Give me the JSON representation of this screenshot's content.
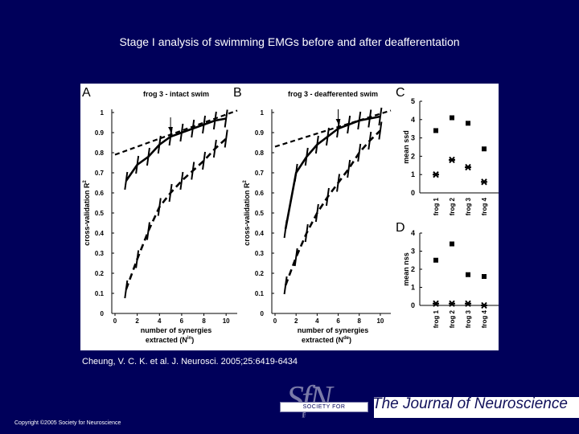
{
  "slide": {
    "title": "Stage I analysis of swimming EMGs before and after deafferentation",
    "citation": "Cheung, V. C. K. et al. J. Neurosci. 2005;25:6419-6434",
    "copyright": "Copyright ©2005 Society for Neuroscience",
    "journal_name": "The Journal of Neuroscience",
    "logo_letters": "SfN",
    "logo_text": "SOCIETY FOR NEUROSCIENCE"
  },
  "colors": {
    "background": "#00005a",
    "panel": "#ffffff",
    "ink": "#000000"
  },
  "chart_data": [
    {
      "panel": "A",
      "type": "line",
      "title": "frog 3 - intact swim",
      "xlabel": "number of synergies",
      "xlabel2": "extracted (N",
      "xlabel_sup": "in",
      "xlabel_end": ")",
      "ylabel": "cross-validation R",
      "ylabel_sup": "2",
      "xlim": [
        0,
        11
      ],
      "ylim": [
        0,
        1
      ],
      "xticks": [
        "0",
        "2",
        "4",
        "6",
        "8",
        "10"
      ],
      "yticks": [
        "0",
        "0.1",
        "0.2",
        "0.3",
        "0.4",
        "0.5",
        "0.6",
        "0.7",
        "0.8",
        "0.9",
        "1"
      ],
      "arrow_x": 5,
      "series": [
        {
          "name": "solid",
          "style": "solid",
          "x": [
            1,
            2,
            3,
            4,
            5,
            6,
            7,
            8,
            9,
            10
          ],
          "y": [
            0.66,
            0.74,
            0.78,
            0.84,
            0.88,
            0.9,
            0.92,
            0.94,
            0.96,
            0.97
          ]
        },
        {
          "name": "dashed",
          "style": "dashed",
          "x": [
            1,
            2,
            3,
            4,
            5,
            6,
            7,
            8,
            9,
            10
          ],
          "y": [
            0.12,
            0.27,
            0.41,
            0.53,
            0.6,
            0.66,
            0.71,
            0.76,
            0.82,
            0.87
          ]
        },
        {
          "name": "fit",
          "style": "fit",
          "x": [
            0,
            11
          ],
          "y": [
            0.79,
            1.01
          ]
        }
      ]
    },
    {
      "panel": "B",
      "type": "line",
      "title": "frog 3 - deafferented swim",
      "xlabel": "number of synergies",
      "xlabel2": "extracted (N",
      "xlabel_sup": "de",
      "xlabel_end": ")",
      "ylabel": "cross-validation R",
      "ylabel_sup": "2",
      "xlim": [
        0,
        11
      ],
      "ylim": [
        0,
        1
      ],
      "xticks": [
        "0",
        "2",
        "4",
        "6",
        "8",
        "10"
      ],
      "yticks": [
        "0",
        "0.1",
        "0.2",
        "0.3",
        "0.4",
        "0.5",
        "0.6",
        "0.7",
        "0.8",
        "0.9",
        "1"
      ],
      "arrow_x": 6,
      "series": [
        {
          "name": "solid",
          "style": "solid",
          "x": [
            1,
            2,
            3,
            4,
            5,
            6,
            7,
            8,
            9,
            10
          ],
          "y": [
            0.42,
            0.7,
            0.78,
            0.84,
            0.88,
            0.92,
            0.94,
            0.96,
            0.97,
            0.98
          ]
        },
        {
          "name": "dashed",
          "style": "dashed",
          "x": [
            1,
            2,
            3,
            4,
            5,
            6,
            7,
            8,
            9,
            10
          ],
          "y": [
            0.14,
            0.28,
            0.4,
            0.5,
            0.58,
            0.65,
            0.72,
            0.8,
            0.86,
            0.91
          ]
        },
        {
          "name": "fit",
          "style": "fit",
          "x": [
            0,
            11
          ],
          "y": [
            0.83,
            1.01
          ]
        }
      ]
    },
    {
      "panel": "C",
      "type": "scatter",
      "ylabel": "mean ssd",
      "ylim": [
        0,
        5
      ],
      "yticks": [
        "0",
        "1",
        "2",
        "3",
        "4",
        "5"
      ],
      "categories": [
        "frog 1",
        "frog 2",
        "frog 3",
        "frog 4"
      ],
      "series": [
        {
          "name": "squares",
          "marker": "square",
          "values": [
            3.4,
            4.1,
            3.8,
            2.4
          ]
        },
        {
          "name": "stars",
          "marker": "star",
          "values": [
            1.0,
            1.8,
            1.4,
            0.6
          ]
        }
      ]
    },
    {
      "panel": "D",
      "type": "scatter",
      "ylabel": "mean nss",
      "ylim": [
        0,
        4
      ],
      "yticks": [
        "0",
        "1",
        "2",
        "3",
        "4"
      ],
      "categories": [
        "frog 1",
        "frog 2",
        "frog 3",
        "frog 4"
      ],
      "series": [
        {
          "name": "squares",
          "marker": "square",
          "values": [
            2.5,
            3.4,
            1.7,
            1.6
          ]
        },
        {
          "name": "stars",
          "marker": "star",
          "values": [
            0.1,
            0.1,
            0.1,
            0.0
          ]
        }
      ]
    }
  ]
}
